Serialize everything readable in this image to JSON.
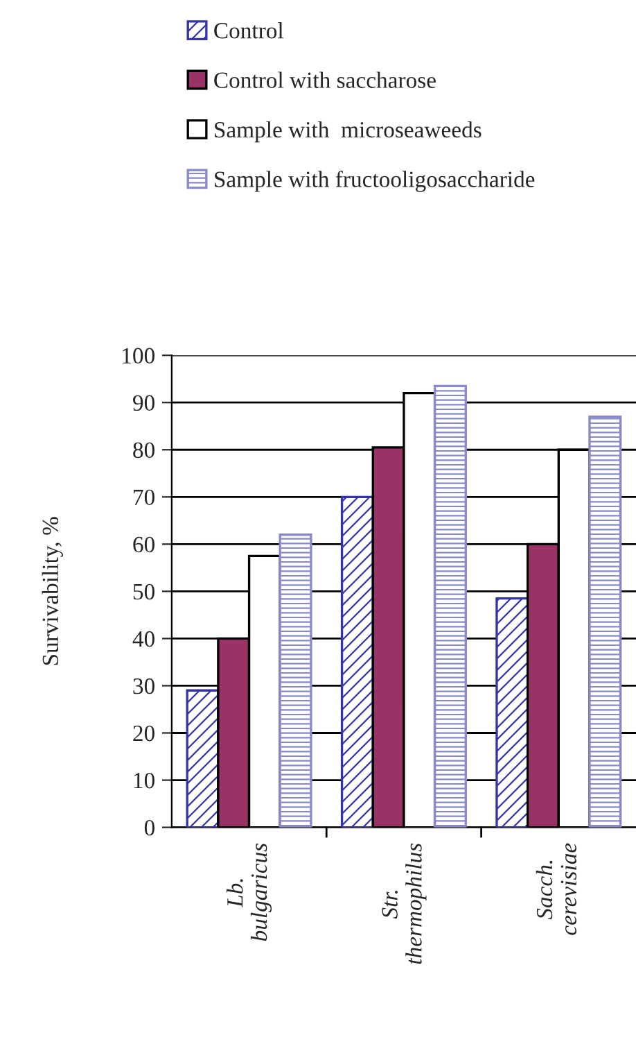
{
  "chart_data": {
    "type": "bar",
    "ylabel": "Survivability, %",
    "categories": [
      "Lb.\nbulgaricus",
      "Str.\nthermophilus",
      "Sacch.\ncerevisiae"
    ],
    "series": [
      {
        "name": "Control",
        "color": "#3333aa",
        "values": [
          29,
          70,
          48.5
        ]
      },
      {
        "name": "Control with saccharose",
        "color": "#993366",
        "values": [
          40,
          80.5,
          60
        ]
      },
      {
        "name": "Sample with  microseaweeds",
        "color": "#ffffff",
        "values": [
          57.5,
          92,
          80
        ]
      },
      {
        "name": "Sample with fructooligosaccharide",
        "color": "#8888cc",
        "values": [
          62,
          93.5,
          87
        ]
      }
    ],
    "ylim": [
      0,
      100
    ],
    "yticks": [
      0,
      10,
      20,
      30,
      40,
      50,
      60,
      70,
      80,
      90,
      100
    ],
    "grid": "y",
    "legend": "top left"
  }
}
